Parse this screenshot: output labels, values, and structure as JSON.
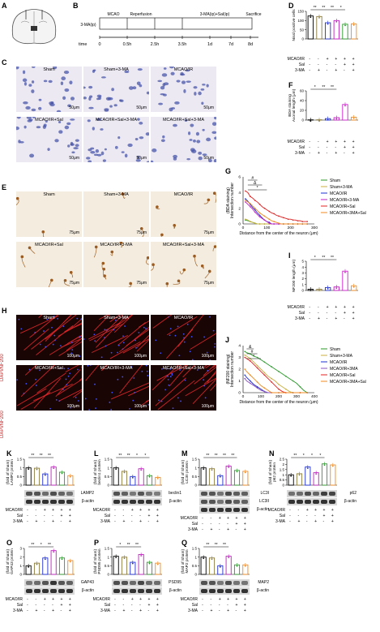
{
  "panels": {
    "A": {
      "letter": "A"
    },
    "B": {
      "letter": "B",
      "row_label": "3-MA(ip)",
      "steps": [
        "MCAO",
        "Reperfusion",
        "3-MA(ip)+Sal(ip)",
        "Sacrifice"
      ],
      "times": [
        "0",
        "0.5h",
        "2.5h",
        "3.5h",
        "1d",
        "7d",
        "8d"
      ],
      "time_label": "time"
    },
    "C": {
      "letter": "C",
      "images": [
        "Sham",
        "Sham+3-MA",
        "MCAO/IR",
        "MCAO/IR+Sal",
        "MCAO/IR+Sal+3-MA",
        "MCAO/IR+Sal+3-MA"
      ],
      "scales": [
        "50μm",
        "50μm",
        "50μm",
        "50μm",
        "50μm",
        "50μm"
      ]
    },
    "E": {
      "letter": "E",
      "images": [
        "Sham",
        "Sham+3-MA",
        "MCAO/IR",
        "MCAO/IR+Sal",
        "MCAO/IR+3-MA",
        "MCAO/IR+Sal+3-MA"
      ],
      "scales": [
        "75μm",
        "75μm",
        "75μm",
        "75μm",
        "75μm",
        "75μm"
      ]
    },
    "H": {
      "letter": "H",
      "images": [
        "Sham",
        "Sham+3-MA",
        "MCAO/IR",
        "MCAO/IR+Sal",
        "MCAO/IR+3-MA",
        "MCAO/IR+Sal+3-MA"
      ],
      "scales": [
        "100μm",
        "100μm",
        "100μm",
        "100μm",
        "100μm",
        "100μm"
      ],
      "side_label": "DAPI/NF200"
    },
    "G": {
      "letter": "G",
      "legend": [
        "Sham",
        "Sham+3-MA",
        "MCAO/IR",
        "MCAO/IR+3-MA",
        "MCAO/IR+Sal",
        "MCAO/IR+3MA+Sal"
      ]
    },
    "J": {
      "letter": "J",
      "legend": [
        "Sham",
        "Sham+3-MA",
        "MCAO/IR",
        "MCAO/IR+3MA",
        "MCAO/IR+Sal",
        "MCAO/IR+3MA+Sal"
      ]
    }
  },
  "treatment_table": {
    "rows": [
      "MCAO/IR",
      "Sal",
      "3-MA"
    ],
    "signs": [
      [
        "-",
        "-",
        "+",
        "+",
        "+",
        "+"
      ],
      [
        "-",
        "-",
        "-",
        "-",
        "+",
        "+"
      ],
      [
        "-",
        "+",
        "-",
        "+",
        "-",
        "+"
      ]
    ]
  },
  "blots": [
    {
      "id": "K",
      "protein": "LAMP2",
      "loading": "β-actin"
    },
    {
      "id": "L",
      "protein": "beclin1",
      "loading": "β-actin"
    },
    {
      "id": "M",
      "protein": "LC3I",
      "protein2": "LC3II",
      "loading": "β-actin"
    },
    {
      "id": "N",
      "protein": "p62",
      "loading": "β-actin"
    },
    {
      "id": "O",
      "protein": "GAP43",
      "loading": "β-actin"
    },
    {
      "id": "P",
      "protein": "PSD95",
      "loading": "β-actin"
    },
    {
      "id": "Q",
      "protein": "MAP2",
      "loading": "β-actin"
    }
  ],
  "chart_data": [
    {
      "id": "D",
      "type": "bar",
      "ylabel": "Nissl positive cells",
      "ylim": [
        0,
        150
      ],
      "ticks": [
        0,
        50,
        100,
        150
      ],
      "values": [
        125,
        122,
        88,
        100,
        80,
        82
      ],
      "colors": [
        "#000000",
        "#8a7a3a",
        "#1f2fd0",
        "#c020c0",
        "#2a9a2a",
        "#f08a20"
      ],
      "sig": [
        "**",
        "**",
        "**",
        "*"
      ]
    },
    {
      "id": "F",
      "type": "bar",
      "ylabel": "Axonal length (μm)",
      "ylabel2": "BDA staining",
      "ylim": [
        0,
        60
      ],
      "ticks": [
        0,
        20,
        40,
        60
      ],
      "values": [
        0.5,
        0.6,
        3,
        5,
        32,
        6
      ],
      "colors": [
        "#000000",
        "#8a7a3a",
        "#1f2fd0",
        "#c020c0",
        "#d020d0",
        "#f08a20"
      ],
      "sig": [
        "*",
        "**",
        "**"
      ]
    },
    {
      "id": "G",
      "type": "line",
      "xlabel": "Distance from the center of the neuron (μm)",
      "ylabel": "Intersection number",
      "ylabel2": "(BDA staining)",
      "xlim": [
        0,
        300
      ],
      "ylim": [
        0,
        6
      ],
      "xticks": [
        0,
        100,
        200,
        300
      ],
      "yticks": [
        0,
        2,
        4,
        6
      ],
      "sig": [
        "#",
        "Δ",
        "*"
      ],
      "x": [
        10,
        20,
        30,
        40,
        50,
        60,
        70,
        80,
        90,
        100,
        110,
        120,
        130,
        140,
        150,
        160,
        170,
        180,
        190,
        200,
        210,
        220,
        230,
        240,
        250,
        260,
        270
      ],
      "series": [
        {
          "name": "Sham",
          "color": "#2a9a2a",
          "values": [
            0.5,
            0.4,
            0.3,
            0.2,
            0.1,
            0,
            0,
            0,
            0,
            0,
            0,
            0,
            0,
            0,
            0,
            0,
            0,
            0,
            0,
            0,
            0,
            0,
            0,
            0,
            0,
            0,
            0
          ]
        },
        {
          "name": "Sham+3-MA",
          "color": "#c8b040",
          "values": [
            0.6,
            0.5,
            0.3,
            0.2,
            0.1,
            0,
            0,
            0,
            0,
            0,
            0,
            0,
            0,
            0,
            0,
            0,
            0,
            0,
            0,
            0,
            0,
            0,
            0,
            0,
            0,
            0,
            0
          ]
        },
        {
          "name": "MCAO/IR",
          "color": "#1f2fd0",
          "values": [
            3.2,
            2.9,
            2.5,
            2.1,
            1.8,
            1.4,
            1.1,
            0.8,
            0.5,
            0.3,
            0.2,
            0,
            0,
            0,
            0,
            0,
            0,
            0,
            0,
            0,
            0,
            0,
            0,
            0,
            0,
            0,
            0
          ]
        },
        {
          "name": "MCAO/IR+3-MA",
          "color": "#c020c0",
          "values": [
            2.8,
            2.5,
            2.2,
            1.9,
            1.5,
            1.2,
            0.9,
            0.7,
            0.5,
            0.3,
            0.1,
            0,
            0,
            0,
            0,
            0,
            0,
            0,
            0,
            0,
            0,
            0,
            0,
            0,
            0,
            0,
            0
          ]
        },
        {
          "name": "MCAO/IR+Sal",
          "color": "#e02020",
          "values": [
            4.2,
            4.0,
            3.5,
            3.3,
            3.0,
            2.8,
            2.5,
            2.2,
            2.0,
            1.8,
            1.6,
            1.4,
            1.3,
            1.1,
            1.0,
            0.9,
            0.8,
            0.7,
            0.6,
            0.6,
            0.5,
            0.5,
            0.4,
            0.4,
            0.3,
            0.3,
            0.3
          ]
        },
        {
          "name": "MCAO/IR+3MA+Sal",
          "color": "#f08a20",
          "values": [
            3.0,
            2.8,
            2.6,
            2.3,
            2.0,
            1.7,
            1.4,
            1.2,
            1.0,
            0.8,
            0.6,
            0.4,
            0.3,
            0.2,
            0.1,
            0,
            0,
            0,
            0,
            0,
            0,
            0,
            0,
            0,
            0,
            0,
            0
          ]
        }
      ]
    },
    {
      "id": "I",
      "type": "bar",
      "ylabel": "NF200 length (μm)",
      "ylim": [
        0,
        5
      ],
      "ticks": [
        0,
        1,
        2,
        3,
        4,
        5
      ],
      "values": [
        0.2,
        0.2,
        0.5,
        0.6,
        3.3,
        0.8
      ],
      "colors": [
        "#000000",
        "#8a7a3a",
        "#1f2fd0",
        "#c020c0",
        "#d020d0",
        "#f08a20"
      ],
      "sig": [
        "*",
        "**",
        "**"
      ]
    },
    {
      "id": "J",
      "type": "line",
      "xlabel": "Distance from the center of the neuron (μm)",
      "ylabel": "Intersection number",
      "ylabel2": "(NF200 staining)",
      "xlim": [
        0,
        400
      ],
      "ylim": [
        0,
        4
      ],
      "xticks": [
        0,
        100,
        200,
        300,
        400
      ],
      "yticks": [
        0,
        1,
        2,
        3,
        4
      ],
      "sig": [
        "&",
        "#",
        "*"
      ],
      "x": [
        10,
        20,
        40,
        60,
        80,
        100,
        120,
        140,
        160,
        180,
        200,
        220,
        240,
        260,
        280,
        300,
        320,
        340,
        360
      ],
      "series": [
        {
          "name": "Sham",
          "color": "#2a9a2a",
          "values": [
            3.5,
            3.4,
            3.3,
            3.1,
            3.0,
            2.8,
            2.6,
            2.4,
            2.2,
            2.0,
            1.8,
            1.6,
            1.4,
            1.2,
            1.0,
            0.8,
            0.5,
            0.2,
            0
          ]
        },
        {
          "name": "Sham+3-MA",
          "color": "#c8b040",
          "values": [
            3.2,
            3.1,
            2.9,
            2.6,
            2.3,
            2.0,
            1.7,
            1.4,
            1.2,
            1.0,
            0.7,
            0.5,
            0.3,
            0.1,
            0,
            0,
            0,
            0,
            0
          ]
        },
        {
          "name": "MCAO/IR",
          "color": "#1f2fd0",
          "values": [
            1.5,
            1.3,
            1.0,
            0.7,
            0.5,
            0.3,
            0.1,
            0,
            0,
            0,
            0,
            0,
            0,
            0,
            0,
            0,
            0,
            0,
            0
          ]
        },
        {
          "name": "MCAO/IR+3MA",
          "color": "#8a50c0",
          "values": [
            1.2,
            1.0,
            0.8,
            0.6,
            0.4,
            0.2,
            0.1,
            0,
            0,
            0,
            0,
            0,
            0,
            0,
            0,
            0,
            0,
            0,
            0
          ]
        },
        {
          "name": "MCAO/IR+Sal",
          "color": "#e02020",
          "values": [
            3.0,
            2.9,
            2.7,
            2.4,
            2.1,
            1.8,
            1.5,
            1.2,
            0.9,
            0.6,
            0.3,
            0.1,
            0,
            0,
            0,
            0,
            0,
            0,
            0
          ]
        },
        {
          "name": "MCAO/IR+3MA+Sal",
          "color": "#f08a20",
          "values": [
            2.0,
            1.8,
            1.5,
            1.2,
            0.9,
            0.6,
            0.4,
            0.2,
            0,
            0,
            0,
            0,
            0,
            0,
            0,
            0,
            0,
            0,
            0
          ]
        }
      ]
    },
    {
      "id": "K",
      "type": "bar",
      "ylabel": "LAMP2 protein",
      "ylabel2": "(fold of Sham)",
      "ylim": [
        0,
        1.5
      ],
      "ticks": [
        0,
        0.5,
        1.0,
        1.5
      ],
      "values": [
        1.0,
        0.98,
        0.65,
        1.05,
        0.75,
        0.55
      ],
      "colors": [
        "#000000",
        "#8a7a3a",
        "#1f2fd0",
        "#c020c0",
        "#2a9a2a",
        "#f08a20"
      ],
      "sig": [
        "**",
        "**",
        "**"
      ]
    },
    {
      "id": "L",
      "type": "bar",
      "ylabel": "beclin1 protein",
      "ylabel2": "(fold of Sham)",
      "ylim": [
        0,
        1.5
      ],
      "ticks": [
        0,
        0.5,
        1.0,
        1.5
      ],
      "values": [
        1.0,
        0.8,
        0.5,
        0.95,
        0.55,
        0.45
      ],
      "colors": [
        "#000000",
        "#8a7a3a",
        "#1f2fd0",
        "#c020c0",
        "#2a9a2a",
        "#f08a20"
      ],
      "sig": [
        "**",
        "**",
        "*",
        "*"
      ]
    },
    {
      "id": "M",
      "type": "bar",
      "ylabel": "LC3II protein",
      "ylabel2": "(fold of Sham)",
      "ylim": [
        0,
        1.5
      ],
      "ticks": [
        0,
        0.5,
        1.0,
        1.5
      ],
      "values": [
        1.0,
        0.95,
        0.55,
        1.1,
        0.85,
        0.8
      ],
      "colors": [
        "#000000",
        "#8a7a3a",
        "#1f2fd0",
        "#c020c0",
        "#2a9a2a",
        "#f08a20"
      ],
      "sig": [
        "**",
        "**",
        "**",
        "**"
      ]
    },
    {
      "id": "N",
      "type": "bar",
      "ylabel": "p62 protein",
      "ylabel2": "(fold of Sham)",
      "ylim": [
        0,
        2.5
      ],
      "ticks": [
        0,
        0.5,
        1.0,
        1.5,
        2.0,
        2.5
      ],
      "values": [
        1.0,
        1.1,
        1.75,
        1.2,
        2.05,
        1.95
      ],
      "colors": [
        "#000000",
        "#8a7a3a",
        "#1f2fd0",
        "#c020c0",
        "#2a9a2a",
        "#f08a20"
      ],
      "sig": [
        "**",
        "*",
        "*",
        "*"
      ]
    },
    {
      "id": "O",
      "type": "bar",
      "ylabel": "GAP43 protein",
      "ylabel2": "(fold of Sham)",
      "ylim": [
        0,
        3
      ],
      "ticks": [
        0,
        1,
        2,
        3
      ],
      "values": [
        1.0,
        1.3,
        1.9,
        2.75,
        1.9,
        1.6
      ],
      "colors": [
        "#000000",
        "#8a7a3a",
        "#1f2fd0",
        "#c020c0",
        "#2a9a2a",
        "#f08a20"
      ],
      "sig": [
        "**",
        "*",
        "**"
      ]
    },
    {
      "id": "P",
      "type": "bar",
      "ylabel": "PSD95 protein",
      "ylabel2": "(fold of Sham)",
      "ylim": [
        0,
        1.5
      ],
      "ticks": [
        0,
        0.5,
        1.0,
        1.5
      ],
      "values": [
        1.05,
        1.0,
        0.7,
        1.15,
        0.7,
        0.65
      ],
      "colors": [
        "#000000",
        "#8a7a3a",
        "#1f2fd0",
        "#c020c0",
        "#2a9a2a",
        "#f08a20"
      ],
      "sig": [
        "*",
        "**",
        "**"
      ]
    },
    {
      "id": "Q",
      "type": "bar",
      "ylabel": "MAP2 protein",
      "ylabel2": "(fold of Sham)",
      "ylim": [
        0,
        1.5
      ],
      "ticks": [
        0,
        0.5,
        1.0,
        1.5
      ],
      "values": [
        1.0,
        0.95,
        0.5,
        1.05,
        0.55,
        0.55
      ],
      "colors": [
        "#000000",
        "#8a7a3a",
        "#1f2fd0",
        "#c020c0",
        "#2a9a2a",
        "#f08a20"
      ],
      "sig": [
        "**",
        "**",
        "**"
      ]
    }
  ]
}
